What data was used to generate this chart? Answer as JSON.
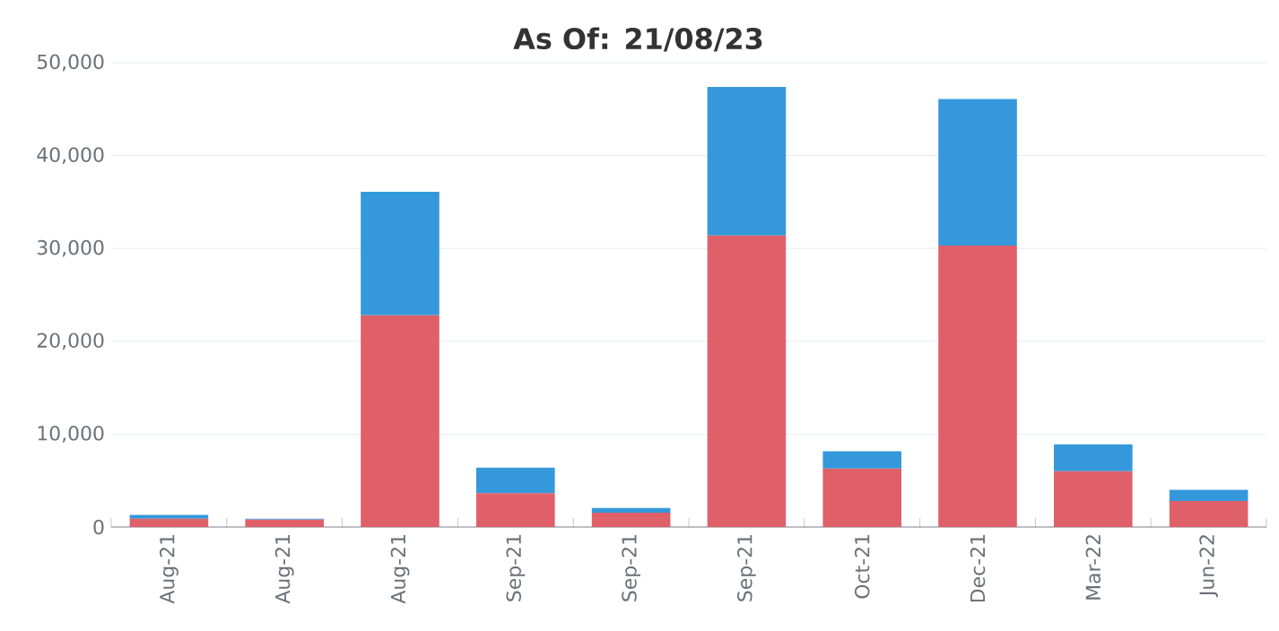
{
  "chart_data": {
    "type": "bar",
    "title": "As Of: 21/08/23",
    "categories": [
      "Aug-21",
      "Aug-21",
      "Aug-21",
      "Sep-21",
      "Sep-21",
      "Sep-21",
      "Oct-21",
      "Dec-21",
      "Mar-22",
      "Jun-22"
    ],
    "stacked": true,
    "series": [
      {
        "color": "#e06069",
        "values": [
          900,
          800,
          22800,
          3650,
          1550,
          31400,
          6300,
          30300,
          6000,
          2800
        ]
      },
      {
        "color": "#3498db",
        "values": [
          400,
          100,
          13300,
          2750,
          500,
          16000,
          1850,
          15800,
          2900,
          1200
        ]
      }
    ],
    "ylim": [
      0,
      50000
    ],
    "yticks": [
      {
        "value": 0,
        "label": "0"
      },
      {
        "value": 10000,
        "label": "10,000"
      },
      {
        "value": 20000,
        "label": "20,000"
      },
      {
        "value": 30000,
        "label": "30,000"
      },
      {
        "value": 40000,
        "label": "40,000"
      },
      {
        "value": 50000,
        "label": "50,000"
      }
    ],
    "grid": "y"
  }
}
